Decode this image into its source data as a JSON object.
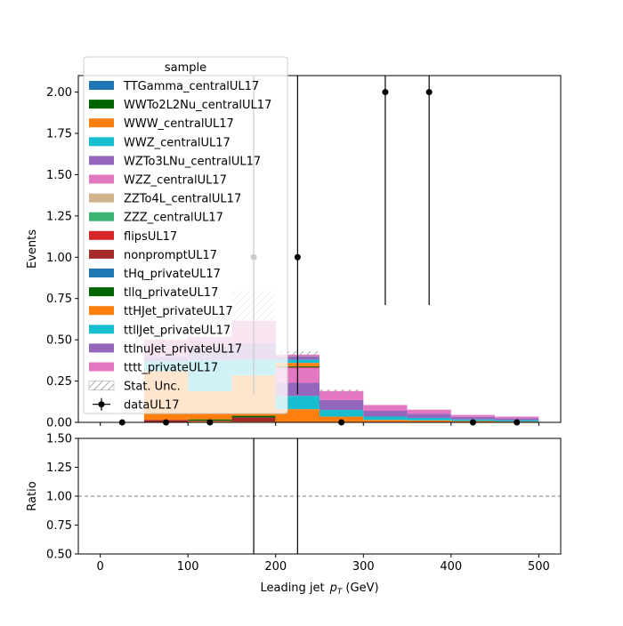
{
  "chart_data": {
    "type": "bar",
    "stacked": true,
    "xlabel": "Leading jet",
    "xlabel_math": "p",
    "xlabel_sub": "T",
    "xlabel_unit": "(GeV)",
    "ylabel_main": "Events",
    "ylabel_ratio": "Ratio",
    "xlim": [
      -25,
      525
    ],
    "ylim_main": [
      0,
      2.1
    ],
    "ylim_ratio": [
      0.5,
      1.5
    ],
    "x_ticks": [
      0,
      100,
      200,
      300,
      400,
      500
    ],
    "x_tick_labels": [
      "0",
      "100",
      "200",
      "300",
      "400",
      "500"
    ],
    "y_ticks_main": [
      0,
      0.25,
      0.5,
      0.75,
      1.0,
      1.25,
      1.5,
      1.75,
      2.0
    ],
    "y_tick_labels_main": [
      "0.00",
      "0.25",
      "0.50",
      "0.75",
      "1.00",
      "1.25",
      "1.50",
      "1.75",
      "2.00"
    ],
    "y_ticks_ratio": [
      0.5,
      0.75,
      1.0,
      1.25,
      1.5
    ],
    "y_tick_labels_ratio": [
      "0.50",
      "0.75",
      "1.00",
      "1.25",
      "1.50"
    ],
    "bin_edges": [
      0,
      50,
      100,
      150,
      200,
      250,
      300,
      350,
      400,
      450,
      500
    ],
    "legend_title": "sample",
    "legend_position": "upper-left",
    "stat_unc_label": "Stat. Unc.",
    "data_label": "dataUL17",
    "series": [
      {
        "name": "TTGamma_centralUL17",
        "color": "#1f77b4",
        "values": [
          0,
          0,
          0,
          0,
          0,
          0,
          0,
          0,
          0,
          0
        ]
      },
      {
        "name": "WWTo2L2Nu_centralUL17",
        "color": "#006400",
        "values": [
          0,
          0,
          0,
          0,
          0,
          0,
          0,
          0,
          0,
          0
        ]
      },
      {
        "name": "WWW_centralUL17",
        "color": "#ff7f0e",
        "values": [
          0,
          0,
          0.007,
          0.005,
          0.08,
          0.035,
          0.015,
          0.012,
          0.008,
          0.005
        ]
      },
      {
        "name": "WWZ_centralUL17",
        "color": "#17becf",
        "values": [
          0,
          0,
          0,
          0,
          0.08,
          0.04,
          0.02,
          0.015,
          0.01,
          0.008
        ]
      },
      {
        "name": "WZTo3LNu_centralUL17",
        "color": "#9467bd",
        "values": [
          0,
          0,
          0,
          0,
          0.08,
          0.06,
          0.035,
          0.025,
          0.015,
          0.012
        ]
      },
      {
        "name": "WZZ_centralUL17",
        "color": "#e377c2",
        "values": [
          0,
          0,
          0,
          0,
          0.09,
          0.055,
          0.035,
          0.025,
          0.012,
          0.01
        ]
      },
      {
        "name": "ZZTo4L_centralUL17",
        "color": "#d2b48c",
        "values": [
          0,
          0,
          0,
          0,
          0,
          0,
          0,
          0,
          0,
          0
        ]
      },
      {
        "name": "ZZZ_centralUL17",
        "color": "#3cb371",
        "values": [
          0,
          0,
          0,
          0,
          0,
          0,
          0,
          0,
          0,
          0
        ]
      },
      {
        "name": "flipsUL17",
        "color": "#d62728",
        "values": [
          0,
          0,
          0,
          0,
          0,
          0,
          0,
          0,
          0,
          0
        ]
      },
      {
        "name": "nonpromptUL17",
        "color": "#a52a2a",
        "values": [
          0,
          0.015,
          0.003,
          0.025,
          0.005,
          0,
          0,
          0,
          0,
          0
        ]
      },
      {
        "name": "tHq_privateUL17",
        "color": "#1f77b4",
        "values": [
          0,
          0,
          0,
          0,
          0,
          0,
          0,
          0,
          0,
          0
        ]
      },
      {
        "name": "tllq_privateUL17",
        "color": "#006400",
        "values": [
          0,
          0,
          0.008,
          0.01,
          0.005,
          0,
          0,
          0,
          0,
          0
        ]
      },
      {
        "name": "ttHJet_privateUL17",
        "color": "#ff7f0e",
        "values": [
          0,
          0.295,
          0.17,
          0.245,
          0.02,
          0,
          0,
          0,
          0,
          0
        ]
      },
      {
        "name": "ttllJet_privateUL17",
        "color": "#17becf",
        "values": [
          0,
          0.06,
          0.19,
          0.095,
          0.02,
          0,
          0,
          0,
          0,
          0
        ]
      },
      {
        "name": "ttlnuJet_privateUL17",
        "color": "#9467bd",
        "values": [
          0,
          0.03,
          0.08,
          0.1,
          0.02,
          0,
          0,
          0,
          0,
          0
        ]
      },
      {
        "name": "tttt_privateUL17",
        "color": "#e377c2",
        "values": [
          0,
          0.1,
          0.06,
          0.135,
          0.01,
          0,
          0,
          0,
          0,
          0
        ]
      }
    ],
    "stat_unc": [
      0,
      0.1,
      0.15,
      0.18,
      0.02,
      0.01,
      0,
      0,
      0,
      0
    ],
    "data_points": {
      "x": [
        25,
        75,
        125,
        175,
        225,
        275,
        325,
        375,
        425,
        475
      ],
      "y": [
        0,
        0,
        0,
        1,
        1,
        0,
        2,
        2,
        0,
        0
      ],
      "yerr_low": [
        0,
        0,
        0,
        0.83,
        0.83,
        0,
        1.29,
        1.29,
        0,
        0
      ],
      "yerr_high": [
        0,
        0,
        0,
        2.3,
        2.3,
        0,
        2.63,
        2.63,
        0,
        0
      ]
    },
    "ratio_reference": 1.0,
    "ratio_err_x": [
      175,
      225
    ]
  }
}
